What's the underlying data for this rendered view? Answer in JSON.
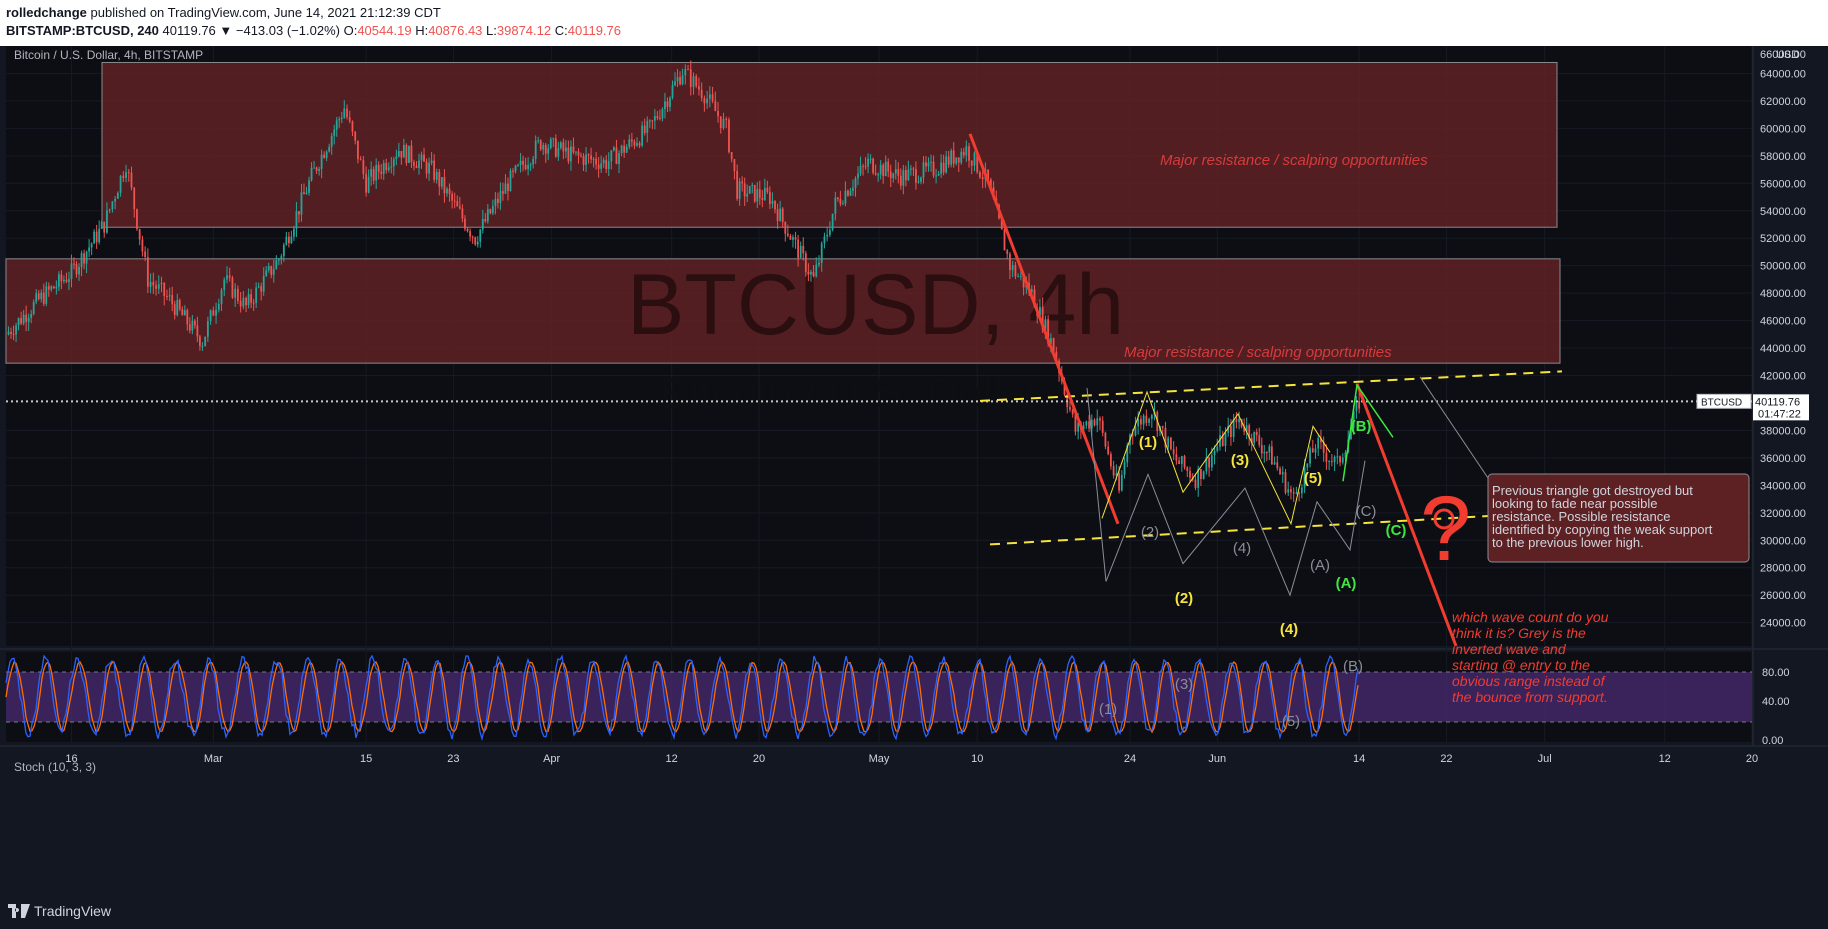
{
  "header": {
    "author": "rolledchange",
    "published_text": "published on TradingView.com, June 14, 2021 21:12:39 CDT",
    "symbol": "BITSTAMP:BTCUSD, 240",
    "last": "40119.76",
    "change": "▼ −413.03 (−1.02%)",
    "o_label": "O:",
    "o_value": "40544.19",
    "h_label": "H:",
    "h_value": "40876.43",
    "l_label": "L:",
    "l_value": "39874.12",
    "c_label": "C:",
    "c_value": "40119.76"
  },
  "chart_title": "Bitcoin / U.S. Dollar, 4h, BITSTAMP",
  "watermark": {
    "main": "BTCUSD, 4h",
    "sub": "Bitcoin / U.S. Dollar"
  },
  "price_axis": {
    "unit": "USD",
    "top_tick": "66000.00",
    "ticks": [
      64000,
      62000,
      60000,
      58000,
      56000,
      54000,
      52000,
      50000,
      48000,
      46000,
      44000,
      42000,
      38000,
      36000,
      34000,
      32000,
      30000,
      28000,
      26000,
      24000
    ],
    "last_label": "BTCUSD",
    "last_price": "40119.76",
    "countdown": "01:47:22"
  },
  "time_axis": {
    "labels": [
      "16",
      "Mar",
      "15",
      "23",
      "Apr",
      "12",
      "20",
      "May",
      "10",
      "24",
      "Jun",
      "14",
      "22",
      "Jul",
      "12",
      "20"
    ]
  },
  "zones": [
    {
      "label": "Major resistance / scalping opportunities",
      "from": 52800,
      "to": 64800
    },
    {
      "label": "Major resistance / scalping opportunities",
      "from": 42900,
      "to": 50500
    }
  ],
  "annotations": {
    "callout": "Previous triangle got destroyed but looking to fade near possible resistance.  Possible resistance identified by copying the weak support to the previous lower high.",
    "question": "which wave count do you think it is? Grey is the inverted wave and starting @ entry to the obvious range instead of the bounce from support.",
    "question_mark": "?"
  },
  "wave_labels": {
    "yellow": [
      "(1)",
      "(2)",
      "(3)",
      "(4)",
      "(5)"
    ],
    "green": [
      "(A)",
      "(B)",
      "(C)"
    ],
    "grey": [
      "(1)",
      "(2)",
      "(3)",
      "(4)",
      "(5)",
      "(A)",
      "(B)",
      "(C)"
    ]
  },
  "indicator": {
    "title": "Stoch (10, 3, 3)",
    "ticks": [
      "80.00",
      "40.00",
      "0.00"
    ],
    "upper": 80,
    "lower": 20
  },
  "footer": {
    "brand": "TradingView"
  },
  "colors": {
    "background": "#131722",
    "zone": "#5d2124",
    "zone_text": "#d63b3b",
    "up": "#26a69a",
    "down": "#ef5350",
    "trend": "#f23c2f",
    "yellow": "#f7e43a",
    "green": "#3ee63e",
    "grey": "#8a8d96",
    "stoch_k": "#2962ff",
    "stoch_d": "#ff6d00",
    "stoch_band": "#4a2a73"
  },
  "chart_data": {
    "type": "candlestick",
    "title": "Bitcoin / U.S. Dollar, 4h, BITSTAMP",
    "xlabel": "",
    "ylabel": "USD",
    "ylim": [
      22300,
      66000
    ],
    "x_range": [
      "2021-02-10",
      "2021-07-20"
    ],
    "x_ticks": [
      {
        "label": "16",
        "date": "2021-02-16"
      },
      {
        "label": "Mar",
        "date": "2021-03-01"
      },
      {
        "label": "15",
        "date": "2021-03-15"
      },
      {
        "label": "23",
        "date": "2021-03-23"
      },
      {
        "label": "Apr",
        "date": "2021-04-01"
      },
      {
        "label": "12",
        "date": "2021-04-12"
      },
      {
        "label": "20",
        "date": "2021-04-20"
      },
      {
        "label": "May",
        "date": "2021-05-01"
      },
      {
        "label": "10",
        "date": "2021-05-10"
      },
      {
        "label": "24",
        "date": "2021-05-24"
      },
      {
        "label": "Jun",
        "date": "2021-06-01"
      },
      {
        "label": "14",
        "date": "2021-06-14"
      },
      {
        "label": "22",
        "date": "2021-06-22"
      },
      {
        "label": "Jul",
        "date": "2021-07-01"
      },
      {
        "label": "12",
        "date": "2021-07-12"
      },
      {
        "label": "20",
        "date": "2021-07-20"
      }
    ],
    "price_path": [
      [
        "2021-02-10",
        45000
      ],
      [
        "2021-02-13",
        47500
      ],
      [
        "2021-02-16",
        49500
      ],
      [
        "2021-02-19",
        53000
      ],
      [
        "2021-02-21",
        57500
      ],
      [
        "2021-02-23",
        49000
      ],
      [
        "2021-02-25",
        47500
      ],
      [
        "2021-02-28",
        44500
      ],
      [
        "2021-03-02",
        49000
      ],
      [
        "2021-03-04",
        47000
      ],
      [
        "2021-03-07",
        50500
      ],
      [
        "2021-03-10",
        56500
      ],
      [
        "2021-03-13",
        61500
      ],
      [
        "2021-03-15",
        56000
      ],
      [
        "2021-03-18",
        58500
      ],
      [
        "2021-03-21",
        57000
      ],
      [
        "2021-03-25",
        52000
      ],
      [
        "2021-03-28",
        56000
      ],
      [
        "2021-03-31",
        59000
      ],
      [
        "2021-04-03",
        58000
      ],
      [
        "2021-04-06",
        57500
      ],
      [
        "2021-04-10",
        60000
      ],
      [
        "2021-04-13",
        64200
      ],
      [
        "2021-04-15",
        62500
      ],
      [
        "2021-04-17",
        60000
      ],
      [
        "2021-04-18",
        55500
      ],
      [
        "2021-04-21",
        55000
      ],
      [
        "2021-04-25",
        49000
      ],
      [
        "2021-04-27",
        54500
      ],
      [
        "2021-04-30",
        57500
      ],
      [
        "2021-05-03",
        56500
      ],
      [
        "2021-05-06",
        57000
      ],
      [
        "2021-05-09",
        58500
      ],
      [
        "2021-05-11",
        56000
      ],
      [
        "2021-05-13",
        50000
      ],
      [
        "2021-05-15",
        48000
      ],
      [
        "2021-05-17",
        44000
      ],
      [
        "2021-05-19",
        38000
      ],
      [
        "2021-05-21",
        39000
      ],
      [
        "2021-05-23",
        33500
      ],
      [
        "2021-05-24",
        38000
      ],
      [
        "2021-05-26",
        39500
      ],
      [
        "2021-05-28",
        36000
      ],
      [
        "2021-05-30",
        34500
      ],
      [
        "2021-06-01",
        36800
      ],
      [
        "2021-06-03",
        38800
      ],
      [
        "2021-06-06",
        36000
      ],
      [
        "2021-06-08",
        33000
      ],
      [
        "2021-06-10",
        37000
      ],
      [
        "2021-06-12",
        35500
      ],
      [
        "2021-06-13",
        37500
      ],
      [
        "2021-06-14",
        40120
      ]
    ],
    "stochastic": {
      "name": "Stoch (10, 3, 3)",
      "upper_band": 80,
      "lower_band": 20,
      "range": [
        0,
        100
      ]
    }
  }
}
